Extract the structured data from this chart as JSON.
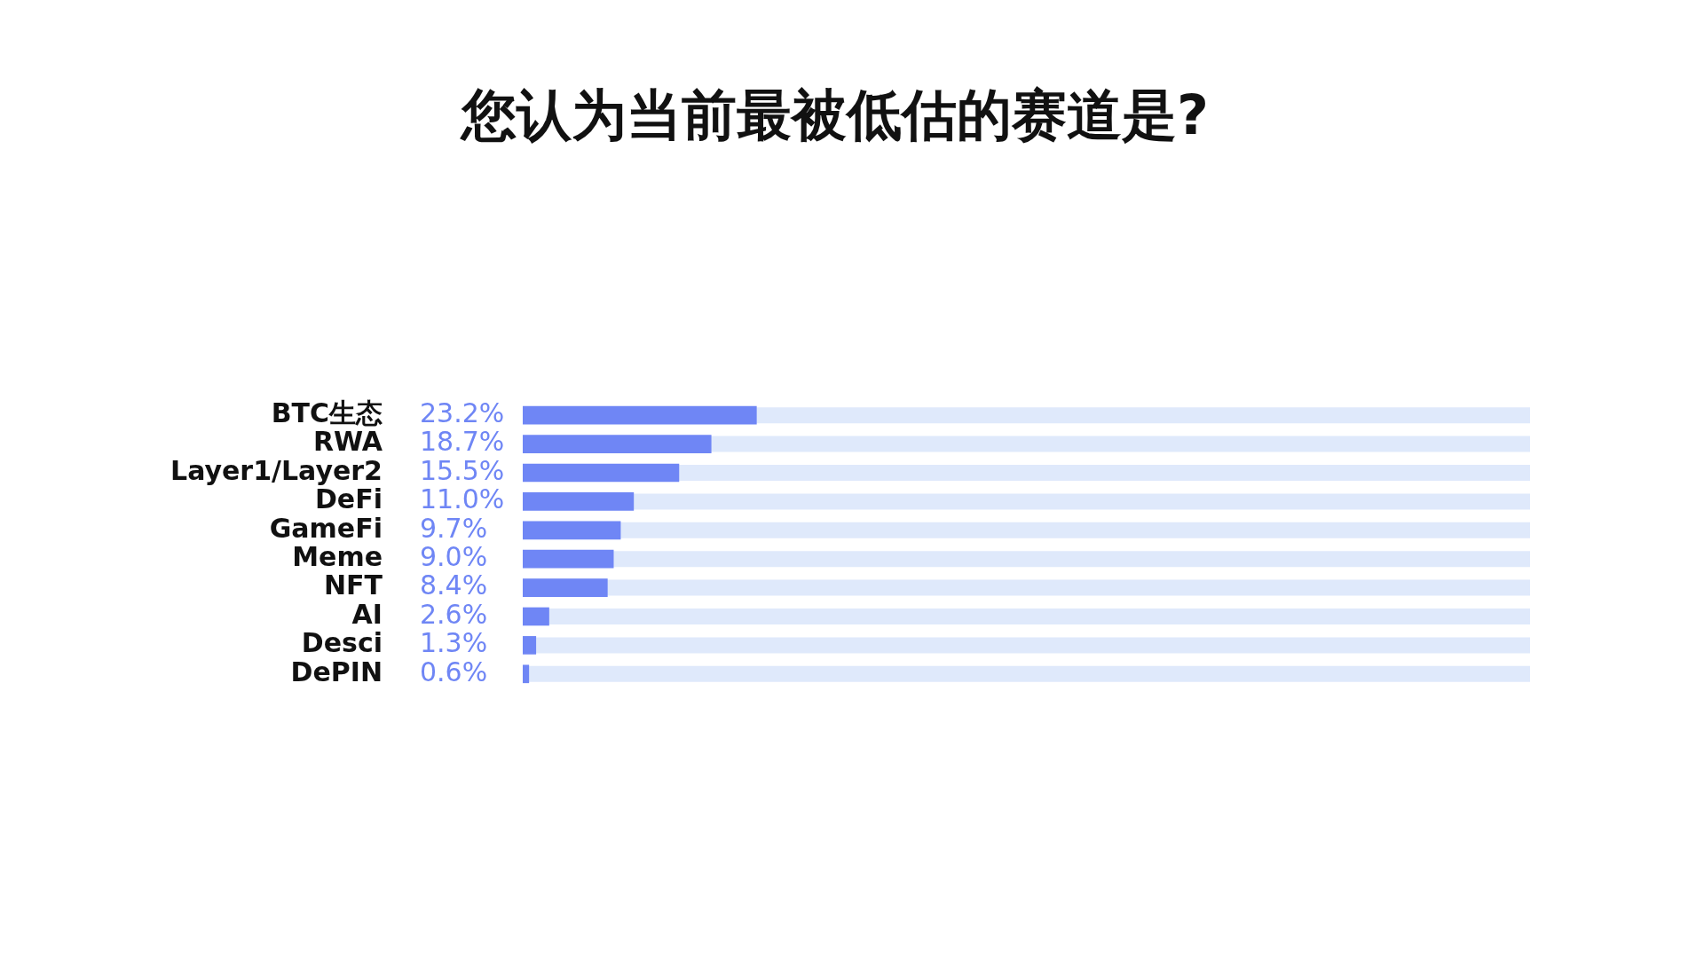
{
  "chart_data": {
    "type": "bar",
    "orientation": "horizontal",
    "title": "您认为当前最被低估的赛道是?",
    "categories": [
      "BTC生态",
      "RWA",
      "Layer1/Layer2",
      "DeFi",
      "GameFi",
      "Meme",
      "NFT",
      "AI",
      "Desci",
      "DePIN"
    ],
    "values": [
      23.2,
      18.7,
      15.5,
      11.0,
      9.7,
      9.0,
      8.4,
      2.6,
      1.3,
      0.6
    ],
    "value_labels": [
      "23.2%",
      "18.7%",
      "15.5%",
      "11.0%",
      "9.7%",
      "9.0%",
      "8.4%",
      "2.6%",
      "1.3%",
      "0.6%"
    ],
    "color": "#6f86f5",
    "xlim": [
      0,
      100
    ],
    "tick_labels": "y",
    "legend": false
  }
}
